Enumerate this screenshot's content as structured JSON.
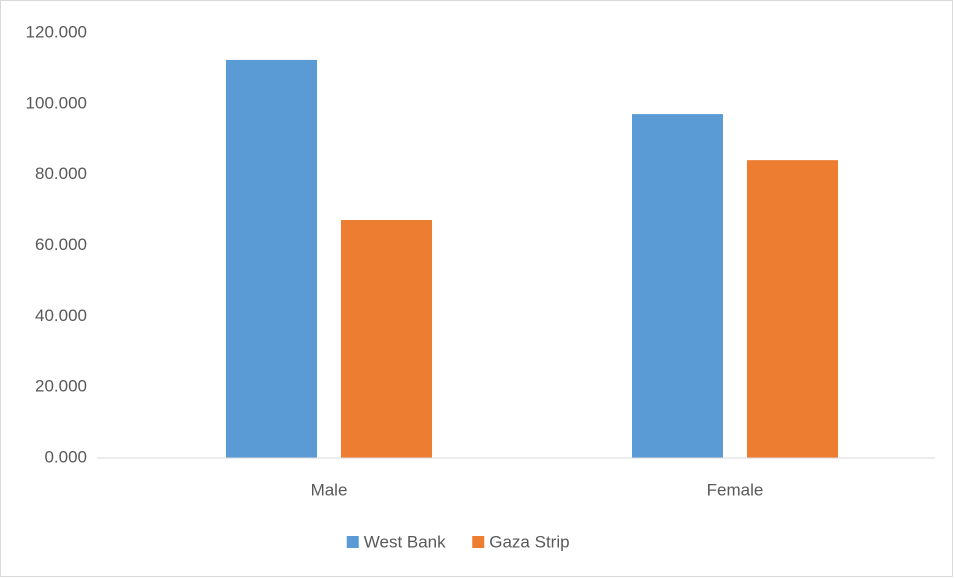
{
  "chart_data": {
    "type": "bar",
    "categories": [
      "Male",
      "Female"
    ],
    "series": [
      {
        "name": "West Bank",
        "color": "#5b9bd5",
        "values": [
          112.4,
          97.1
        ]
      },
      {
        "name": "Gaza Strip",
        "color": "#ed7d31",
        "values": [
          67.2,
          84.1
        ]
      }
    ],
    "ylim": [
      0,
      120
    ],
    "yticks": [
      {
        "value": 0,
        "label": "0.000"
      },
      {
        "value": 20,
        "label": "20.000"
      },
      {
        "value": 40,
        "label": "40.000"
      },
      {
        "value": 60,
        "label": "60.000"
      },
      {
        "value": 80,
        "label": "80.000"
      },
      {
        "value": 100,
        "label": "100.000"
      },
      {
        "value": 120,
        "label": "120.000"
      }
    ],
    "grid": false,
    "legend": "bottom"
  }
}
